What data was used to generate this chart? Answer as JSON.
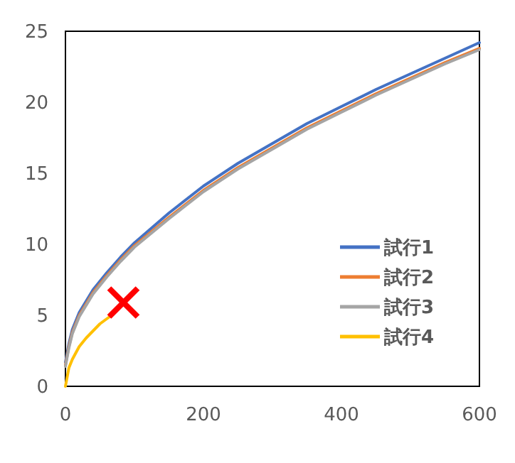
{
  "chart_data": {
    "type": "line",
    "x": [
      0,
      5,
      10,
      20,
      40,
      60,
      80,
      100,
      150,
      200,
      250,
      300,
      350,
      400,
      450,
      500,
      550,
      600
    ],
    "series": [
      {
        "name": "試行1",
        "color": "#4472c4",
        "values": [
          1.7,
          3,
          4,
          5.2,
          6.8,
          8,
          9.1,
          10.1,
          12.2,
          14.1,
          15.7,
          17.1,
          18.5,
          19.7,
          20.9,
          22,
          23.1,
          24.2
        ]
      },
      {
        "name": "試行2",
        "color": "#ed7d31",
        "values": [
          1.5,
          2.8,
          3.8,
          5,
          6.6,
          7.8,
          8.9,
          9.9,
          11.9,
          13.8,
          15.4,
          16.8,
          18.2,
          19.4,
          20.6,
          21.7,
          22.8,
          23.8
        ]
      },
      {
        "name": "試行3",
        "color": "#a5a5a5",
        "values": [
          1.4,
          2.7,
          3.7,
          4.9,
          6.5,
          7.7,
          8.8,
          9.8,
          11.8,
          13.7,
          15.3,
          16.7,
          18.1,
          19.3,
          20.5,
          21.6,
          22.7,
          23.7
        ]
      },
      {
        "name": "試行4",
        "color": "#ffc000",
        "x": [
          0,
          5,
          10,
          20,
          30,
          40,
          50,
          64
        ],
        "values": [
          0,
          1.3,
          1.9,
          2.8,
          3.4,
          3.9,
          4.4,
          4.9
        ]
      }
    ],
    "xlim": [
      0,
      600
    ],
    "xticks": [
      0,
      200,
      400,
      600
    ],
    "ylim": [
      0,
      25
    ],
    "yticks": [
      0,
      5,
      10,
      15,
      20,
      25
    ],
    "grid": false,
    "legend": "bottom right",
    "marker": "none",
    "line_style": "solid"
  }
}
